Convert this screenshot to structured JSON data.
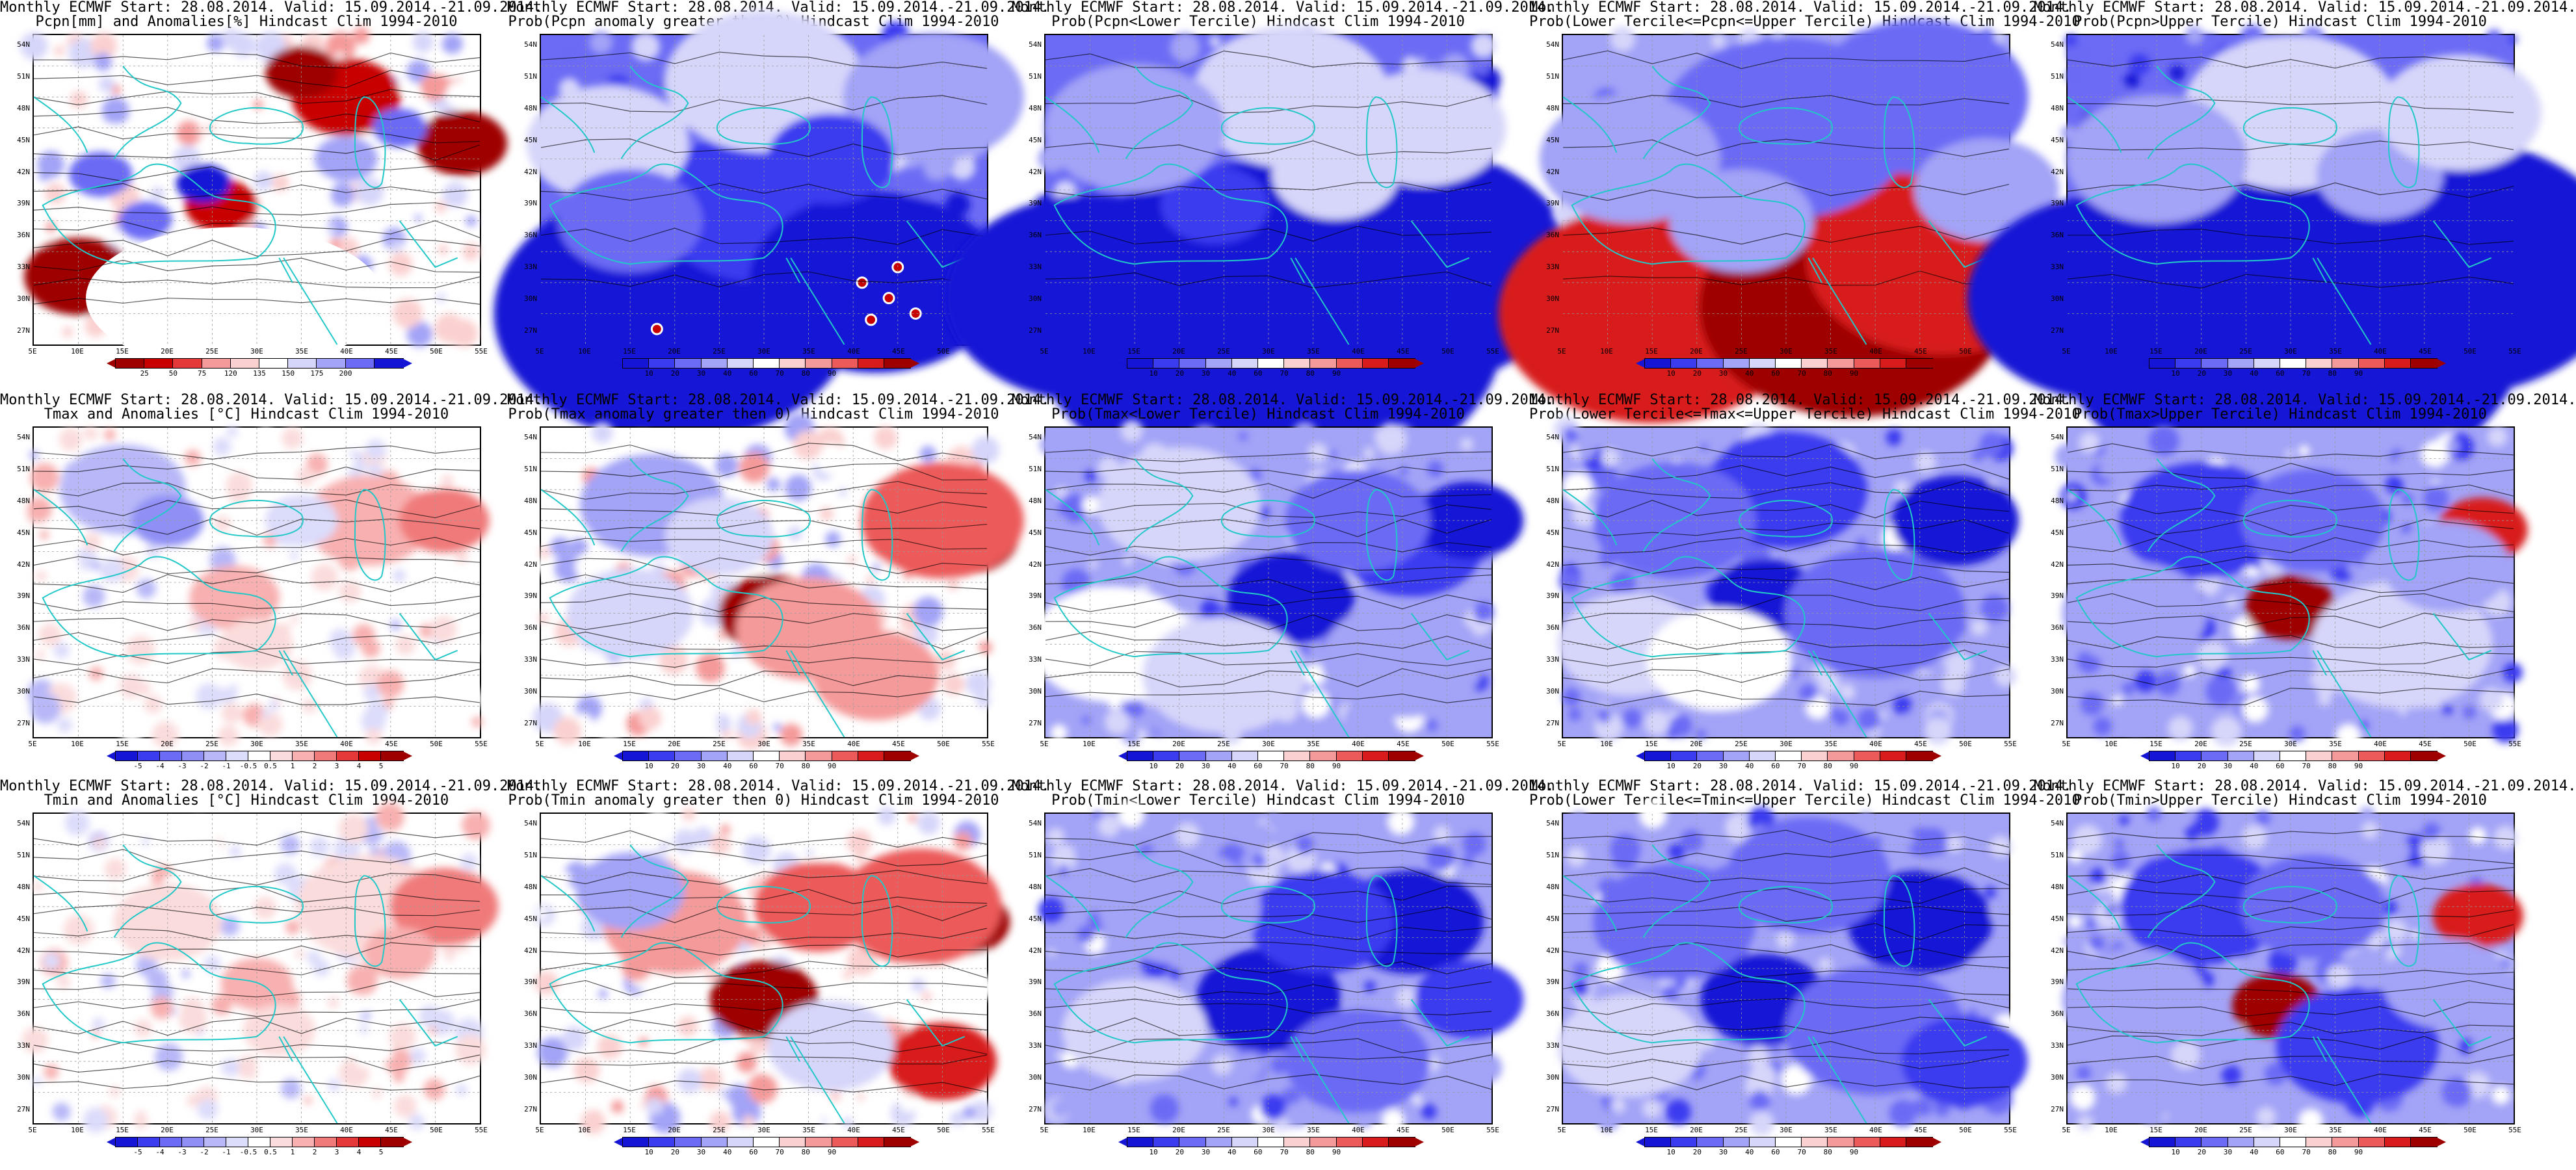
{
  "panels": [
    {
      "title1": "Monthly ECMWF Start: 28.08.2014. Valid: 15.09.2014.-21.09.2014.",
      "title2": "Pcpn[mm] and Anomalies[%] Hindcast Clim 1994-2010",
      "scale": "pcpn",
      "field": "pcpn",
      "colorbar": [
        "25",
        "50",
        "75",
        "120",
        "135",
        "150",
        "175",
        "200"
      ]
    },
    {
      "title1": "Monthly ECMWF Start: 28.08.2014. Valid: 15.09.2014.-21.09.2014.",
      "title2": "Prob(Pcpn anomaly greater then 0) Hindcast Clim 1994-2010",
      "scale": "prob",
      "field": "pcpn_prob",
      "colorbar": [
        "10",
        "20",
        "30",
        "40",
        "60",
        "70",
        "80",
        "90"
      ]
    },
    {
      "title1": "Monthly ECMWF Start: 28.08.2014. Valid: 15.09.2014.-21.09.2014.",
      "title2": "Prob(Pcpn<Lower Tercile) Hindcast Clim 1994-2010",
      "scale": "prob",
      "field": "pcpn_lower",
      "colorbar": [
        "10",
        "20",
        "30",
        "40",
        "60",
        "70",
        "80",
        "90"
      ]
    },
    {
      "title1": "Monthly ECMWF Start: 28.08.2014. Valid: 15.09.2014.-21.09.2014.",
      "title2": "Prob(Lower Tercile<=Pcpn<=Upper Tercile) Hindcast Clim 1994-2010",
      "scale": "prob",
      "field": "pcpn_mid",
      "colorbar": [
        "10",
        "20",
        "30",
        "40",
        "60",
        "70",
        "80",
        "90"
      ]
    },
    {
      "title1": "Monthly ECMWF Start: 28.08.2014. Valid: 15.09.2014.-21.09.2014.",
      "title2": "Prob(Pcpn>Upper Tercile) Hindcast Clim 1994-2010",
      "scale": "prob",
      "field": "pcpn_upper",
      "colorbar": [
        "10",
        "20",
        "30",
        "40",
        "60",
        "70",
        "80",
        "90"
      ]
    },
    {
      "title1": "Monthly ECMWF Start: 28.08.2014. Valid: 15.09.2014.-21.09.2014.",
      "title2": "Tmax and Anomalies [°C] Hindcast Clim 1994-2010",
      "scale": "anom",
      "field": "tmax",
      "colorbar": [
        "-5",
        "-4",
        "-3",
        "-2",
        "-1",
        "-0.5",
        "0.5",
        "1",
        "2",
        "3",
        "4",
        "5"
      ]
    },
    {
      "title1": "Monthly ECMWF Start: 28.08.2014. Valid: 15.09.2014.-21.09.2014.",
      "title2": "Prob(Tmax anomaly greater then 0) Hindcast Clim 1994-2010",
      "scale": "prob",
      "field": "tmax_prob",
      "colorbar": [
        "10",
        "20",
        "30",
        "40",
        "60",
        "70",
        "80",
        "90"
      ]
    },
    {
      "title1": "Monthly ECMWF Start: 28.08.2014. Valid: 15.09.2014.-21.09.2014.",
      "title2": "Prob(Tmax<Lower Tercile) Hindcast Clim 1994-2010",
      "scale": "prob",
      "field": "tmax_lower",
      "colorbar": [
        "10",
        "20",
        "30",
        "40",
        "60",
        "70",
        "80",
        "90"
      ]
    },
    {
      "title1": "Monthly ECMWF Start: 28.08.2014. Valid: 15.09.2014.-21.09.2014.",
      "title2": "Prob(Lower Tercile<=Tmax<=Upper Tercile) Hindcast Clim 1994-2010",
      "scale": "prob",
      "field": "tmax_mid",
      "colorbar": [
        "10",
        "20",
        "30",
        "40",
        "60",
        "70",
        "80",
        "90"
      ]
    },
    {
      "title1": "Monthly ECMWF Start: 28.08.2014. Valid: 15.09.2014.-21.09.2014.",
      "title2": "Prob(Tmax>Upper Tercile) Hindcast Clim 1994-2010",
      "scale": "prob",
      "field": "tmax_upper",
      "colorbar": [
        "10",
        "20",
        "30",
        "40",
        "60",
        "70",
        "80",
        "90"
      ]
    },
    {
      "title1": "Monthly ECMWF Start: 28.08.2014. Valid: 15.09.2014.-21.09.2014.",
      "title2": "Tmin and Anomalies [°C] Hindcast Clim 1994-2010",
      "scale": "anom",
      "field": "tmin",
      "colorbar": [
        "-5",
        "-4",
        "-3",
        "-2",
        "-1",
        "-0.5",
        "0.5",
        "1",
        "2",
        "3",
        "4",
        "5"
      ]
    },
    {
      "title1": "Monthly ECMWF Start: 28.08.2014. Valid: 15.09.2014.-21.09.2014.",
      "title2": "Prob(Tmin anomaly greater then 0) Hindcast Clim 1994-2010",
      "scale": "prob",
      "field": "tmin_prob",
      "colorbar": [
        "10",
        "20",
        "30",
        "40",
        "60",
        "70",
        "80",
        "90"
      ]
    },
    {
      "title1": "Monthly ECMWF Start: 28.08.2014. Valid: 15.09.2014.-21.09.2014.",
      "title2": "Prob(Tmin<Lower Tercile) Hindcast Clim 1994-2010",
      "scale": "prob",
      "field": "tmin_lower",
      "colorbar": [
        "10",
        "20",
        "30",
        "40",
        "60",
        "70",
        "80",
        "90"
      ]
    },
    {
      "title1": "Monthly ECMWF Start: 28.08.2014. Valid: 15.09.2014.-21.09.2014.",
      "title2": "Prob(Lower Tercile<=Tmin<=Upper Tercile) Hindcast Clim 1994-2010",
      "scale": "prob",
      "field": "tmin_mid",
      "colorbar": [
        "10",
        "20",
        "30",
        "40",
        "60",
        "70",
        "80",
        "90"
      ]
    },
    {
      "title1": "Monthly ECMWF Start: 28.08.2014. Valid: 15.09.2014.-21.09.2014.",
      "title2": "Prob(Tmin>Upper Tercile) Hindcast Clim 1994-2010",
      "scale": "prob",
      "field": "tmin_upper",
      "colorbar": [
        "10",
        "20",
        "30",
        "40",
        "60",
        "70",
        "80",
        "90"
      ]
    }
  ],
  "lat_labels": [
    "54N",
    "51N",
    "48N",
    "45N",
    "42N",
    "39N",
    "36N",
    "33N",
    "30N",
    "27N"
  ],
  "lon_labels": [
    "5E",
    "10E",
    "15E",
    "20E",
    "25E",
    "30E",
    "35E",
    "40E",
    "45E",
    "50E",
    "55E"
  ],
  "palettes": {
    "prob": [
      "#1515d6",
      "#3b3bf0",
      "#6b6bf5",
      "#a3a3f7",
      "#d6d6fa",
      "#ffffff",
      "#fbd0d0",
      "#f59a9a",
      "#ec5a5a",
      "#d81c1c",
      "#9e0000"
    ],
    "anom": [
      "#1515d6",
      "#3b3bf0",
      "#6b6bf5",
      "#8f8ff5",
      "#b8b8f8",
      "#dcdcfb",
      "#ffffff",
      "#fbdcdc",
      "#f8b0b0",
      "#f07a7a",
      "#e53838",
      "#c80000",
      "#9e0000"
    ],
    "pcpn": [
      "#9e0000",
      "#c80000",
      "#e53838",
      "#f59a9a",
      "#fbd0d0",
      "#ffffff",
      "#d6d6fa",
      "#a3a3f7",
      "#6b6bf5",
      "#1515d6"
    ]
  },
  "map_colors": {
    "coast": "#22c8c8",
    "contour": "#000000",
    "grid": "#999999"
  }
}
